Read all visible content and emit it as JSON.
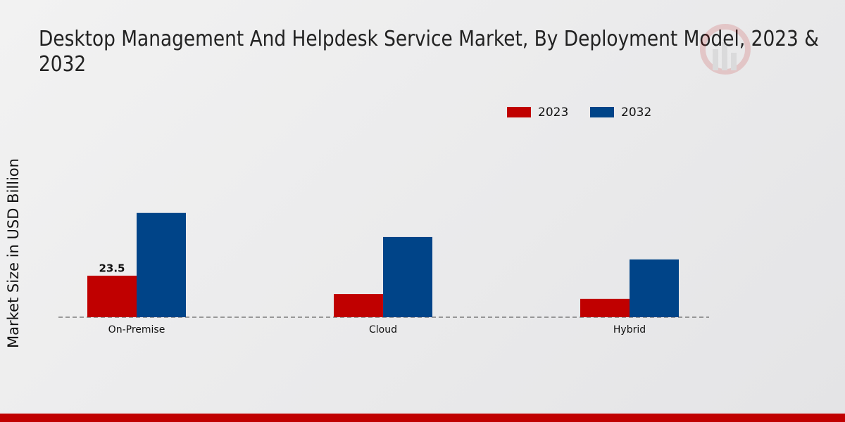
{
  "chart_data": {
    "type": "bar",
    "title": "Desktop Management And Helpdesk Service Market, By Deployment Model, 2023 & 2032",
    "y_label": "Market Size in USD Billion",
    "categories": [
      "On-Premise",
      "Cloud",
      "Hybrid"
    ],
    "series": [
      {
        "name": "2023",
        "color": "#c00000",
        "values": [
          23.5,
          13.1,
          10.4
        ]
      },
      {
        "name": "2032",
        "color": "#004488",
        "values": [
          59,
          45.4,
          32.7
        ]
      }
    ],
    "data_labels": [
      {
        "series": 0,
        "index": 0
      }
    ],
    "ylim": [
      0,
      80
    ],
    "legend": "top"
  }
}
